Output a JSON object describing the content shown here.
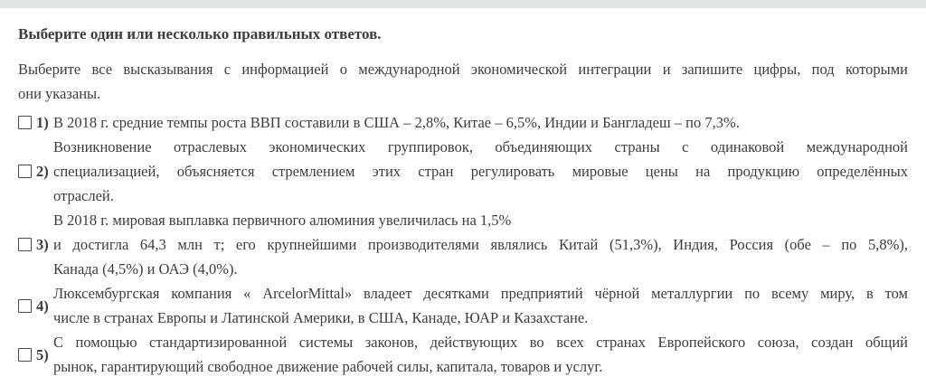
{
  "colors": {
    "top_bar": "#e0e4e5",
    "text": "#3d3d3d"
  },
  "question": {
    "heading": "Выберите один или несколько правильных ответов.",
    "intro": {
      "lines": [
        "Выберите все высказывания с информацией о международной экономической интеграции и запишите цифры, под которыми",
        "они указаны."
      ]
    },
    "options": [
      {
        "num": "1)",
        "checked": false,
        "lines": [
          "В 2018 г. средние темпы роста ВВП составили в США – 2,8%, Китае – 6,5%, Индии и Бангладеш – по 7,3%."
        ]
      },
      {
        "num": "2)",
        "checked": false,
        "lines": [
          "Возникновение отраслевых экономических группировок, объединяющих страны с одинаковой международной",
          "специализацией, объясняется стремлением этих стран регулировать мировые цены на продукцию определённых",
          "отраслей."
        ]
      },
      {
        "num": "3)",
        "checked": false,
        "lines": [
          "В 2018 г. мировая выплавка первичного алюминия увеличилась на 1,5%",
          "и достигла 64,3 млн т; его крупнейшими производителями являлись Китай (51,3%), Индия, Россия (обе – по 5,8%),",
          "Канада (4,5%) и ОАЭ (4,0%)."
        ]
      },
      {
        "num": "4)",
        "checked": false,
        "lines": [
          "Люксембургская компания « ArcelorMittal» владеет десятками предприятий чёрной металлургии по всему миру, в том",
          "числе в странах Европы и Латинской Америки, в США, Канаде, ЮАР и Казахстане."
        ]
      },
      {
        "num": "5)",
        "checked": false,
        "lines": [
          "С помощью стандартизированной системы законов, действующих во всех странах Европейского союза, создан общий",
          "рынок, гарантирующий свободное движение рабочей силы, капитала, товаров и услуг."
        ]
      }
    ]
  }
}
